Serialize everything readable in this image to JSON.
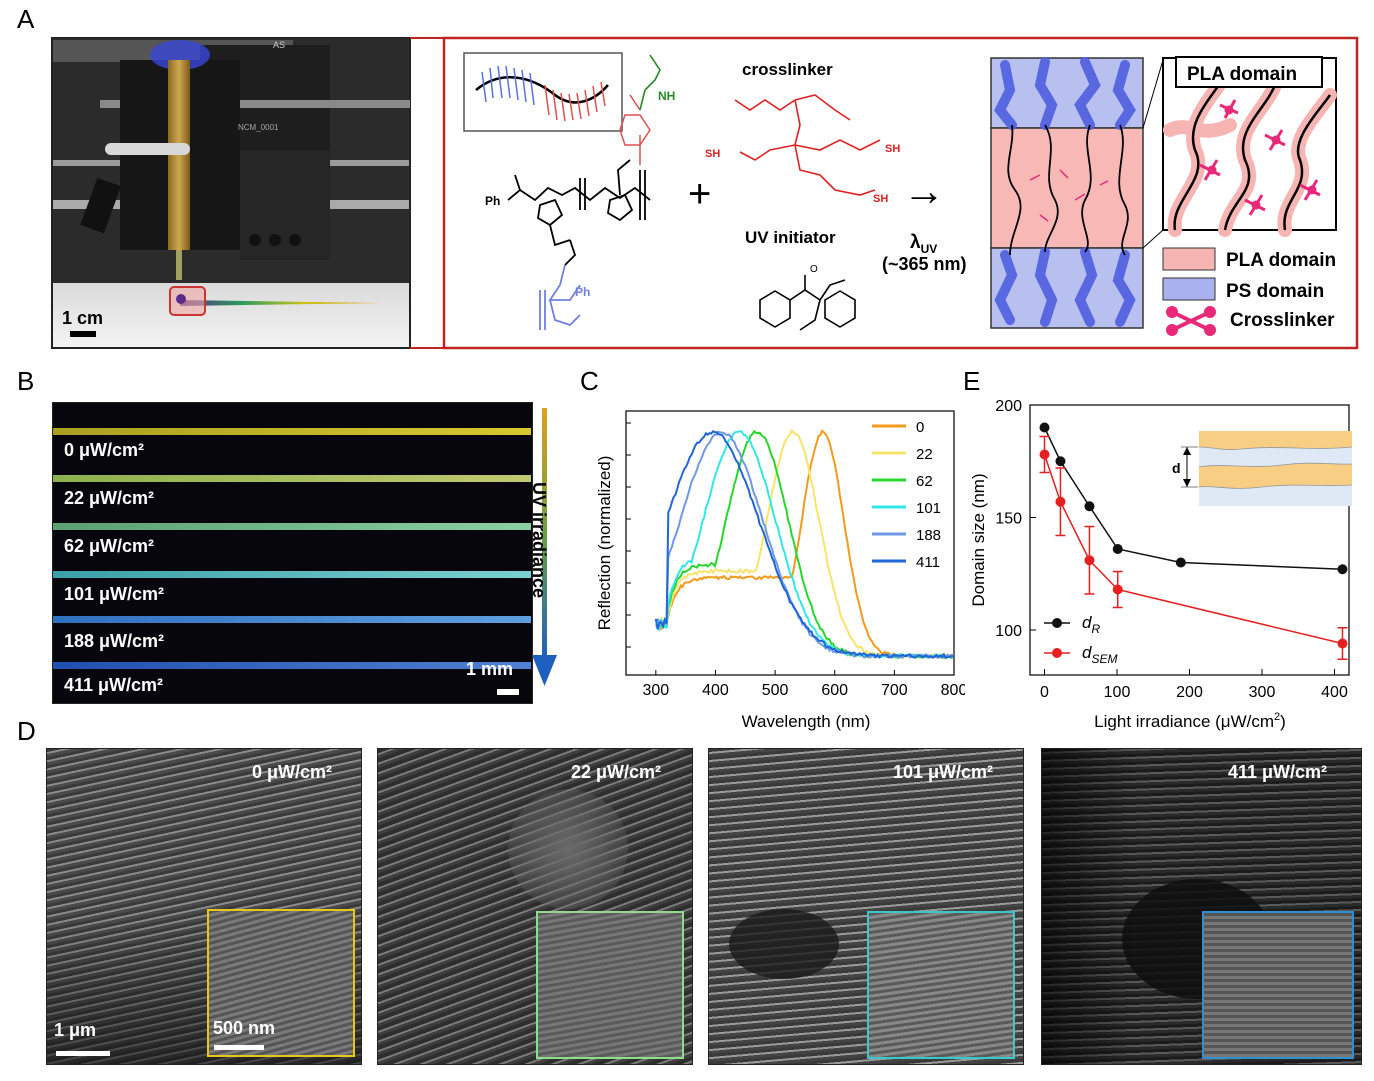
{
  "panel_labels": {
    "a": "A",
    "b": "B",
    "c": "C",
    "d": "D",
    "e": "E"
  },
  "panelA": {
    "scale_bar": "1 cm",
    "printer_text_1": "AS",
    "printer_text_2": "NCM_0001",
    "crosslinker": "crosslinker",
    "uv_initiator": "UV initiator",
    "lambda": "λ",
    "lambda_sub": "UV",
    "wavelength": "(~365 nm)",
    "plus": "+",
    "arrow": "→",
    "chem": {
      "ph1": "Ph",
      "ph2": "Ph",
      "nh": "NH",
      "sh1": "SH",
      "sh2": "SH",
      "sh3": "SH",
      "o": "O"
    },
    "zoom_title": "PLA domain",
    "legend": [
      {
        "label": "PLA domain",
        "color": "#f6b5b3"
      },
      {
        "label": "PS domain",
        "color": "#a9b2ee"
      },
      {
        "label": "Crosslinker",
        "color": "#e8297a"
      }
    ]
  },
  "panelB": {
    "rows": [
      "0 μW/cm²",
      "22 μW/cm²",
      "62 μW/cm²",
      "101 μW/cm²",
      "188 μW/cm²",
      "411 μW/cm²"
    ],
    "uv_label": "UV irradiance",
    "scale": "1 mm"
  },
  "chart_data": [
    {
      "type": "line",
      "panel": "C",
      "xlabel": "Wavelength (nm)",
      "ylabel": "Reflection (normalized)",
      "xlim": [
        250,
        800
      ],
      "xticks": [
        "300",
        "400",
        "500",
        "600",
        "700",
        "800"
      ],
      "series": [
        {
          "name": "0",
          "color": "#f39a1f",
          "peak": 580,
          "shoulder": 400
        },
        {
          "name": "22",
          "color": "#f7e46a",
          "peak": 530,
          "shoulder": 420
        },
        {
          "name": "62",
          "color": "#27d72b",
          "peak": 470,
          "shoulder": 400
        },
        {
          "name": "101",
          "color": "#33e6e6",
          "peak": 440,
          "shoulder": 390
        },
        {
          "name": "188",
          "color": "#6f98e6",
          "peak": 410,
          "shoulder": 380
        },
        {
          "name": "411",
          "color": "#2166d6",
          "peak": 395,
          "shoulder": 340
        }
      ]
    },
    {
      "type": "scatter",
      "panel": "E",
      "xlabel": "Light irradiance (μW/cm",
      "xlabel_sup": "2",
      "xlabel_end": ")",
      "ylabel": "Domain size (nm)",
      "xlim": [
        -20,
        420
      ],
      "ylim": [
        80,
        200
      ],
      "xticks": [
        "0",
        "100",
        "200",
        "300",
        "400"
      ],
      "yticks": [
        "100",
        "150",
        "200"
      ],
      "inset_label": "d",
      "series": [
        {
          "name": "d",
          "sub": "R",
          "color": "#111111",
          "x": [
            0,
            22,
            62,
            101,
            188,
            411
          ],
          "y": [
            190,
            175,
            155,
            136,
            130,
            127
          ]
        },
        {
          "name": "d",
          "sub": "SEM",
          "color": "#e62020",
          "x": [
            0,
            22,
            62,
            101,
            411
          ],
          "y": [
            178,
            157,
            131,
            118,
            94
          ],
          "err": [
            8,
            15,
            15,
            8,
            7
          ]
        }
      ]
    }
  ],
  "panelD": {
    "images": [
      {
        "label": "0 μW/cm²",
        "inset_color": "#e6c619"
      },
      {
        "label": "22 μW/cm²",
        "inset_color": "#8fdc8c"
      },
      {
        "label": "101 μW/cm²",
        "inset_color": "#3bc6c9"
      },
      {
        "label": "411 μW/cm²",
        "inset_color": "#2f8fd0"
      }
    ],
    "scale_main": "1 μm",
    "scale_inset": "500 nm"
  }
}
